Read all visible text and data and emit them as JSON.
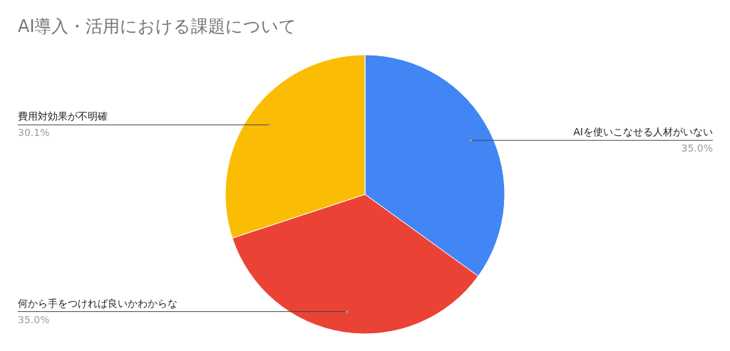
{
  "chart_data": {
    "type": "pie",
    "title": "AI導入・活用における課題について",
    "categories": [
      "AIを使いこなせる人材がいない",
      "何から手をつければ良いかわからな",
      "費用対効果が不明確"
    ],
    "values": [
      35.0,
      35.0,
      30.1
    ],
    "colors": [
      "#4285f4",
      "#ea4335",
      "#fbbc04"
    ],
    "value_labels": [
      "35.0%",
      "35.0%",
      "30.1%"
    ],
    "legend": false
  }
}
